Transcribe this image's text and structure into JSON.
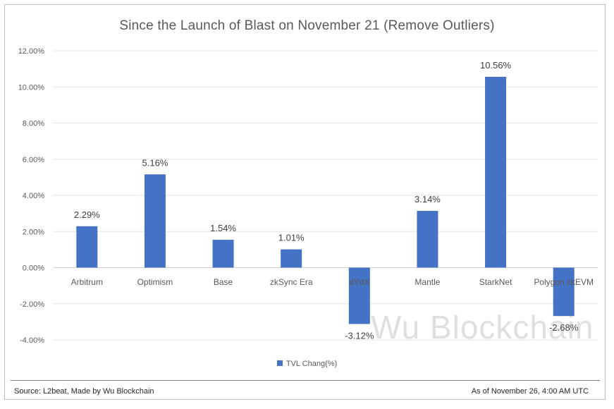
{
  "chart_data": {
    "type": "bar",
    "title": "Since the Launch of Blast on November 21 (Remove Outliers)",
    "categories": [
      "Arbitrum",
      "Optimism",
      "Base",
      "zkSync Era",
      "dYdX",
      "Mantle",
      "StarkNet",
      "Polygon zkEVM"
    ],
    "series": [
      {
        "name": "TVL Chang(%)",
        "values": [
          2.29,
          5.16,
          1.54,
          1.01,
          -3.12,
          3.14,
          10.56,
          -2.68
        ],
        "labels": [
          "2.29%",
          "5.16%",
          "1.54%",
          "1.01%",
          "-3.12%",
          "3.14%",
          "10.56%",
          "-2.68%"
        ]
      }
    ],
    "ylim": [
      -4,
      12
    ],
    "yticks": [
      12,
      10,
      8,
      6,
      4,
      2,
      0,
      -2,
      -4
    ],
    "ytick_labels": [
      "12.00%",
      "10.00%",
      "8.00%",
      "6.00%",
      "4.00%",
      "2.00%",
      "0.00%",
      "-2.00%",
      "-4.00%"
    ],
    "xlabel": "",
    "ylabel": "",
    "grid": true,
    "legend_position": "bottom",
    "bar_color": "#4472c4"
  },
  "footer": {
    "source": "Source: L2beat, Made by Wu Blockchain",
    "as_of": "As of November 26, 4:00 AM UTC"
  },
  "watermark": "Wu Blockchain"
}
